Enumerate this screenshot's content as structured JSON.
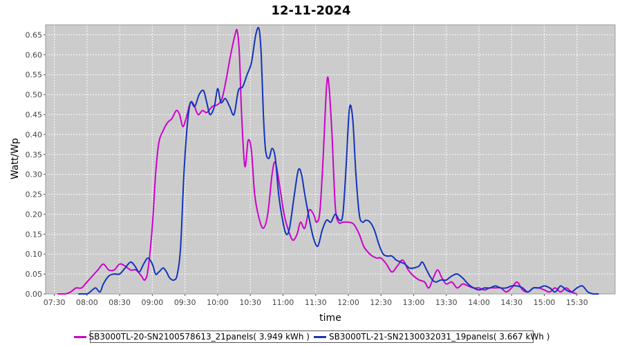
{
  "chart_data": {
    "type": "line",
    "title": "12-11-2024",
    "xlabel": "time",
    "ylabel": "Watt/Wp",
    "ylim": [
      0.0,
      0.675
    ],
    "xlim": [
      "07:22",
      "16:05"
    ],
    "x_ticks": [
      "07:30",
      "08:00",
      "08:30",
      "09:00",
      "09:30",
      "10:00",
      "10:30",
      "11:00",
      "11:30",
      "12:00",
      "12:30",
      "13:00",
      "13:30",
      "14:00",
      "14:30",
      "15:00",
      "15:30"
    ],
    "y_ticks": [
      "0.00",
      "0.05",
      "0.10",
      "0.15",
      "0.20",
      "0.25",
      "0.30",
      "0.35",
      "0.40",
      "0.45",
      "0.50",
      "0.55",
      "0.60",
      "0.65"
    ],
    "grid": true,
    "legend_position": "bottom",
    "colors": {
      "plot_background": "#cccccc",
      "grid": "#ffffff"
    },
    "series": [
      {
        "name": "SB3000TL-20-SN2100578613_21panels( 3.949 kWh )",
        "color": "#cc00cc",
        "points": [
          [
            "07:33",
            0.0
          ],
          [
            "07:40",
            0.0
          ],
          [
            "07:45",
            0.005
          ],
          [
            "07:50",
            0.015
          ],
          [
            "07:55",
            0.015
          ],
          [
            "08:00",
            0.03
          ],
          [
            "08:05",
            0.045
          ],
          [
            "08:10",
            0.06
          ],
          [
            "08:15",
            0.075
          ],
          [
            "08:20",
            0.06
          ],
          [
            "08:25",
            0.06
          ],
          [
            "08:30",
            0.075
          ],
          [
            "08:35",
            0.07
          ],
          [
            "08:40",
            0.06
          ],
          [
            "08:45",
            0.06
          ],
          [
            "08:50",
            0.045
          ],
          [
            "08:53",
            0.035
          ],
          [
            "08:56",
            0.06
          ],
          [
            "09:00",
            0.17
          ],
          [
            "09:03",
            0.3
          ],
          [
            "09:06",
            0.38
          ],
          [
            "09:10",
            0.41
          ],
          [
            "09:14",
            0.43
          ],
          [
            "09:18",
            0.44
          ],
          [
            "09:22",
            0.46
          ],
          [
            "09:25",
            0.45
          ],
          [
            "09:28",
            0.42
          ],
          [
            "09:31",
            0.44
          ],
          [
            "09:35",
            0.48
          ],
          [
            "09:38",
            0.475
          ],
          [
            "09:42",
            0.45
          ],
          [
            "09:46",
            0.46
          ],
          [
            "09:50",
            0.455
          ],
          [
            "09:55",
            0.47
          ],
          [
            "10:00",
            0.475
          ],
          [
            "10:04",
            0.49
          ],
          [
            "10:08",
            0.54
          ],
          [
            "10:12",
            0.6
          ],
          [
            "10:16",
            0.65
          ],
          [
            "10:18",
            0.66
          ],
          [
            "10:20",
            0.6
          ],
          [
            "10:22",
            0.45
          ],
          [
            "10:25",
            0.32
          ],
          [
            "10:28",
            0.385
          ],
          [
            "10:31",
            0.36
          ],
          [
            "10:34",
            0.25
          ],
          [
            "10:38",
            0.19
          ],
          [
            "10:42",
            0.165
          ],
          [
            "10:46",
            0.2
          ],
          [
            "10:50",
            0.3
          ],
          [
            "10:53",
            0.33
          ],
          [
            "10:57",
            0.27
          ],
          [
            "11:01",
            0.2
          ],
          [
            "11:05",
            0.16
          ],
          [
            "11:09",
            0.135
          ],
          [
            "11:13",
            0.15
          ],
          [
            "11:16",
            0.18
          ],
          [
            "11:20",
            0.165
          ],
          [
            "11:24",
            0.21
          ],
          [
            "11:28",
            0.2
          ],
          [
            "11:31",
            0.18
          ],
          [
            "11:34",
            0.21
          ],
          [
            "11:37",
            0.35
          ],
          [
            "11:40",
            0.52
          ],
          [
            "11:42",
            0.53
          ],
          [
            "11:45",
            0.4
          ],
          [
            "11:48",
            0.22
          ],
          [
            "11:51",
            0.18
          ],
          [
            "11:55",
            0.18
          ],
          [
            "12:00",
            0.18
          ],
          [
            "12:05",
            0.175
          ],
          [
            "12:10",
            0.15
          ],
          [
            "12:14",
            0.12
          ],
          [
            "12:18",
            0.105
          ],
          [
            "12:22",
            0.095
          ],
          [
            "12:26",
            0.09
          ],
          [
            "12:30",
            0.09
          ],
          [
            "12:35",
            0.075
          ],
          [
            "12:40",
            0.055
          ],
          [
            "12:45",
            0.07
          ],
          [
            "12:50",
            0.085
          ],
          [
            "12:55",
            0.06
          ],
          [
            "13:00",
            0.045
          ],
          [
            "13:05",
            0.035
          ],
          [
            "13:10",
            0.03
          ],
          [
            "13:14",
            0.015
          ],
          [
            "13:18",
            0.04
          ],
          [
            "13:22",
            0.06
          ],
          [
            "13:26",
            0.04
          ],
          [
            "13:30",
            0.025
          ],
          [
            "13:35",
            0.03
          ],
          [
            "13:40",
            0.015
          ],
          [
            "13:45",
            0.025
          ],
          [
            "13:50",
            0.02
          ],
          [
            "13:55",
            0.015
          ],
          [
            "14:00",
            0.015
          ],
          [
            "14:05",
            0.01
          ],
          [
            "14:10",
            0.015
          ],
          [
            "14:15",
            0.015
          ],
          [
            "14:20",
            0.015
          ],
          [
            "14:25",
            0.005
          ],
          [
            "14:30",
            0.015
          ],
          [
            "14:35",
            0.03
          ],
          [
            "14:40",
            0.01
          ],
          [
            "14:45",
            0.005
          ],
          [
            "14:50",
            0.015
          ],
          [
            "14:55",
            0.015
          ],
          [
            "15:00",
            0.01
          ],
          [
            "15:05",
            0.005
          ],
          [
            "15:10",
            0.015
          ],
          [
            "15:15",
            0.005
          ],
          [
            "15:20",
            0.015
          ],
          [
            "15:25",
            0.005
          ],
          [
            "15:30",
            0.0
          ]
        ]
      },
      {
        "name": "SB3000TL-21-SN2130032031_19panels( 3.667 kWh )",
        "color": "#1133bb",
        "points": [
          [
            "07:52",
            0.0
          ],
          [
            "08:00",
            0.0
          ],
          [
            "08:05",
            0.01
          ],
          [
            "08:08",
            0.015
          ],
          [
            "08:12",
            0.005
          ],
          [
            "08:15",
            0.025
          ],
          [
            "08:20",
            0.045
          ],
          [
            "08:25",
            0.05
          ],
          [
            "08:30",
            0.05
          ],
          [
            "08:35",
            0.065
          ],
          [
            "08:40",
            0.08
          ],
          [
            "08:44",
            0.07
          ],
          [
            "08:48",
            0.055
          ],
          [
            "08:52",
            0.075
          ],
          [
            "08:56",
            0.09
          ],
          [
            "09:00",
            0.075
          ],
          [
            "09:03",
            0.05
          ],
          [
            "09:06",
            0.055
          ],
          [
            "09:10",
            0.065
          ],
          [
            "09:13",
            0.055
          ],
          [
            "09:16",
            0.04
          ],
          [
            "09:20",
            0.035
          ],
          [
            "09:23",
            0.05
          ],
          [
            "09:26",
            0.12
          ],
          [
            "09:29",
            0.3
          ],
          [
            "09:32",
            0.42
          ],
          [
            "09:35",
            0.48
          ],
          [
            "09:39",
            0.47
          ],
          [
            "09:43",
            0.5
          ],
          [
            "09:47",
            0.51
          ],
          [
            "09:50",
            0.48
          ],
          [
            "09:53",
            0.45
          ],
          [
            "09:57",
            0.47
          ],
          [
            "10:00",
            0.515
          ],
          [
            "10:03",
            0.48
          ],
          [
            "10:07",
            0.49
          ],
          [
            "10:11",
            0.47
          ],
          [
            "10:15",
            0.45
          ],
          [
            "10:19",
            0.51
          ],
          [
            "10:23",
            0.52
          ],
          [
            "10:27",
            0.55
          ],
          [
            "10:31",
            0.58
          ],
          [
            "10:35",
            0.65
          ],
          [
            "10:38",
            0.665
          ],
          [
            "10:40",
            0.6
          ],
          [
            "10:42",
            0.45
          ],
          [
            "10:44",
            0.36
          ],
          [
            "10:47",
            0.34
          ],
          [
            "10:50",
            0.365
          ],
          [
            "10:53",
            0.34
          ],
          [
            "10:56",
            0.25
          ],
          [
            "11:00",
            0.18
          ],
          [
            "11:03",
            0.15
          ],
          [
            "11:06",
            0.165
          ],
          [
            "11:10",
            0.24
          ],
          [
            "11:14",
            0.31
          ],
          [
            "11:17",
            0.3
          ],
          [
            "11:20",
            0.25
          ],
          [
            "11:24",
            0.19
          ],
          [
            "11:28",
            0.14
          ],
          [
            "11:32",
            0.12
          ],
          [
            "11:36",
            0.16
          ],
          [
            "11:40",
            0.185
          ],
          [
            "11:44",
            0.18
          ],
          [
            "11:48",
            0.2
          ],
          [
            "11:52",
            0.185
          ],
          [
            "11:55",
            0.2
          ],
          [
            "11:58",
            0.32
          ],
          [
            "12:01",
            0.465
          ],
          [
            "12:04",
            0.44
          ],
          [
            "12:07",
            0.3
          ],
          [
            "12:10",
            0.2
          ],
          [
            "12:13",
            0.18
          ],
          [
            "12:16",
            0.185
          ],
          [
            "12:20",
            0.18
          ],
          [
            "12:24",
            0.16
          ],
          [
            "12:28",
            0.125
          ],
          [
            "12:32",
            0.1
          ],
          [
            "12:36",
            0.095
          ],
          [
            "12:40",
            0.095
          ],
          [
            "12:44",
            0.085
          ],
          [
            "12:48",
            0.08
          ],
          [
            "12:52",
            0.075
          ],
          [
            "12:56",
            0.065
          ],
          [
            "13:00",
            0.065
          ],
          [
            "13:05",
            0.07
          ],
          [
            "13:08",
            0.08
          ],
          [
            "13:12",
            0.06
          ],
          [
            "13:16",
            0.04
          ],
          [
            "13:20",
            0.03
          ],
          [
            "13:25",
            0.035
          ],
          [
            "13:30",
            0.035
          ],
          [
            "13:35",
            0.045
          ],
          [
            "13:40",
            0.05
          ],
          [
            "13:45",
            0.04
          ],
          [
            "13:50",
            0.025
          ],
          [
            "13:55",
            0.015
          ],
          [
            "14:00",
            0.01
          ],
          [
            "14:05",
            0.015
          ],
          [
            "14:10",
            0.015
          ],
          [
            "14:15",
            0.02
          ],
          [
            "14:20",
            0.015
          ],
          [
            "14:25",
            0.015
          ],
          [
            "14:30",
            0.02
          ],
          [
            "14:35",
            0.02
          ],
          [
            "14:40",
            0.015
          ],
          [
            "14:45",
            0.005
          ],
          [
            "14:50",
            0.015
          ],
          [
            "14:55",
            0.015
          ],
          [
            "15:00",
            0.02
          ],
          [
            "15:05",
            0.015
          ],
          [
            "15:10",
            0.005
          ],
          [
            "15:15",
            0.02
          ],
          [
            "15:20",
            0.01
          ],
          [
            "15:25",
            0.005
          ],
          [
            "15:30",
            0.015
          ],
          [
            "15:35",
            0.02
          ],
          [
            "15:40",
            0.005
          ],
          [
            "15:45",
            0.0
          ],
          [
            "15:50",
            0.0
          ]
        ]
      }
    ]
  }
}
